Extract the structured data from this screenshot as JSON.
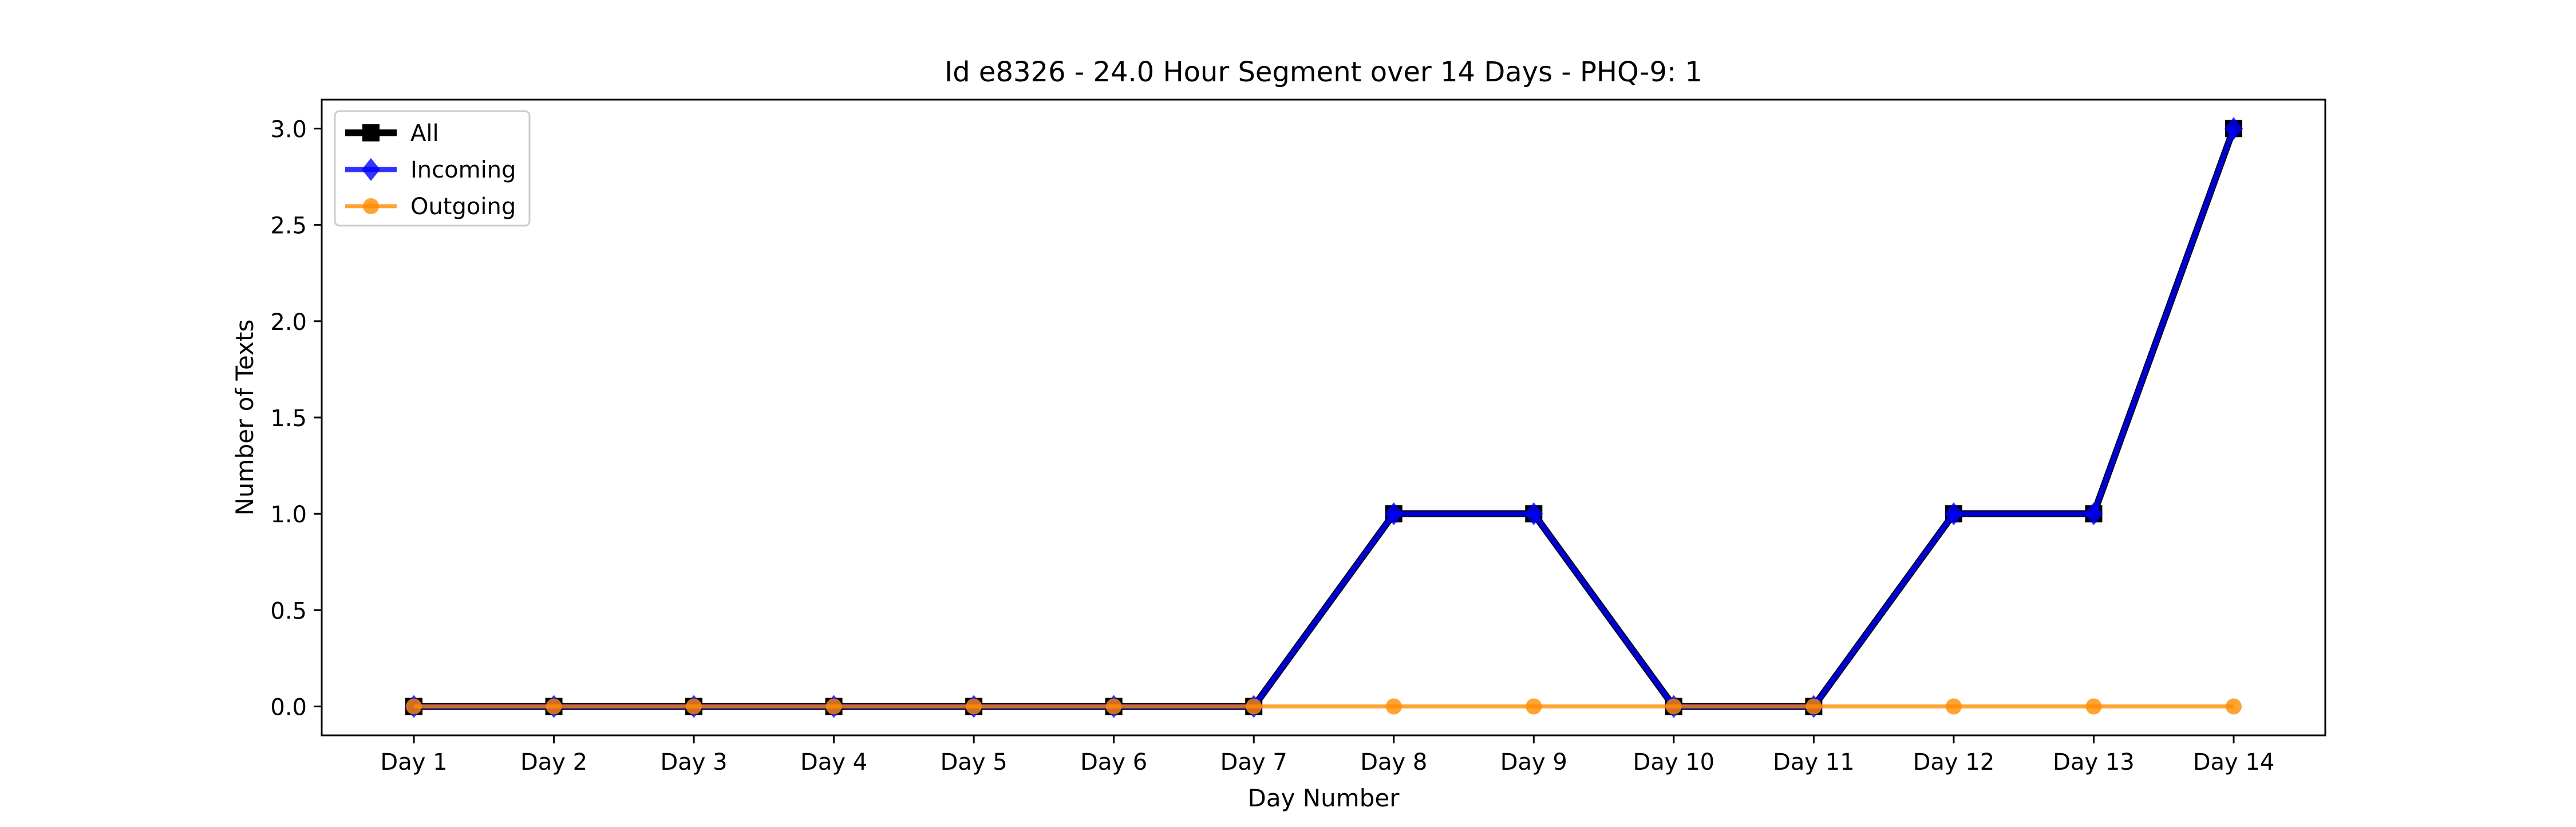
{
  "chart_data": {
    "type": "line",
    "title": "Id e8326 - 24.0 Hour Segment over 14 Days - PHQ-9: 1",
    "xlabel": "Day Number",
    "ylabel": "Number of Texts",
    "categories": [
      "Day 1",
      "Day 2",
      "Day 3",
      "Day 4",
      "Day 5",
      "Day 6",
      "Day 7",
      "Day 8",
      "Day 9",
      "Day 10",
      "Day 11",
      "Day 12",
      "Day 13",
      "Day 14"
    ],
    "ylim": [
      -0.15,
      3.15
    ],
    "yticks": [
      0.0,
      0.5,
      1.0,
      1.5,
      2.0,
      2.5,
      3.0
    ],
    "ytick_labels": [
      "0.0",
      "0.5",
      "1.0",
      "1.5",
      "2.0",
      "2.5",
      "3.0"
    ],
    "grid": false,
    "legend_position": "top-left",
    "series": [
      {
        "name": "All",
        "color": "#000000",
        "marker": "square",
        "values": [
          0,
          0,
          0,
          0,
          0,
          0,
          0,
          1,
          1,
          0,
          0,
          1,
          1,
          3
        ]
      },
      {
        "name": "Incoming",
        "color": "#0000ff",
        "marker": "diamond",
        "values": [
          0,
          0,
          0,
          0,
          0,
          0,
          0,
          1,
          1,
          0,
          0,
          1,
          1,
          3
        ]
      },
      {
        "name": "Outgoing",
        "color": "#ff8c00",
        "marker": "circle",
        "values": [
          0,
          0,
          0,
          0,
          0,
          0,
          0,
          0,
          0,
          0,
          0,
          0,
          0,
          0
        ]
      }
    ]
  }
}
